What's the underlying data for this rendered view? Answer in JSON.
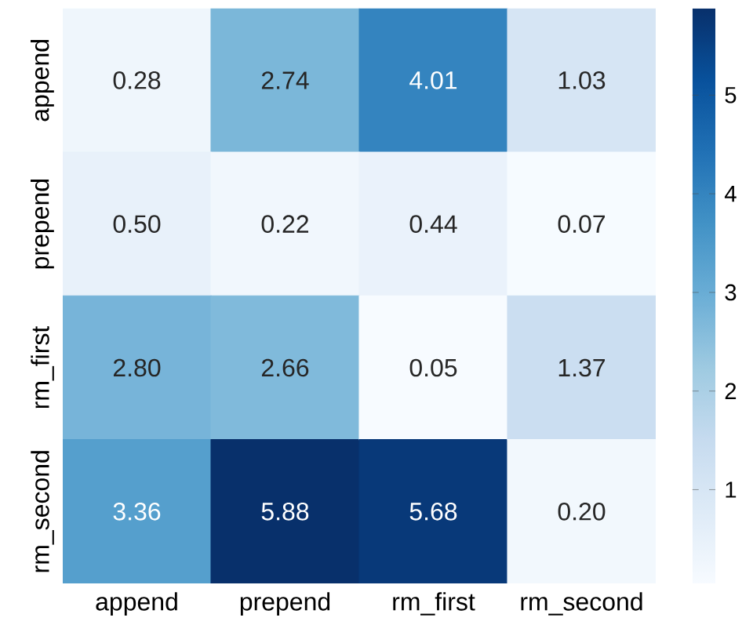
{
  "chart_data": {
    "type": "heatmap",
    "categories": [
      "append",
      "prepend",
      "rm_first",
      "rm_second"
    ],
    "y_categories": [
      "append",
      "prepend",
      "rm_first",
      "rm_second"
    ],
    "cells": [
      [
        0.28,
        2.74,
        4.01,
        1.03
      ],
      [
        0.5,
        0.22,
        0.44,
        0.07
      ],
      [
        2.8,
        2.66,
        0.05,
        1.37
      ],
      [
        3.36,
        5.88,
        5.68,
        0.2
      ]
    ],
    "cell_labels": [
      [
        "0.28",
        "2.74",
        "4.01",
        "1.03"
      ],
      [
        "0.50",
        "0.22",
        "0.44",
        "0.07"
      ],
      [
        "2.80",
        "2.66",
        "0.05",
        "1.37"
      ],
      [
        "3.36",
        "5.88",
        "5.68",
        "0.20"
      ]
    ],
    "data_labels": true,
    "clim": [
      0.05,
      5.88
    ],
    "cticks": [
      1,
      2,
      3,
      4,
      5
    ]
  }
}
